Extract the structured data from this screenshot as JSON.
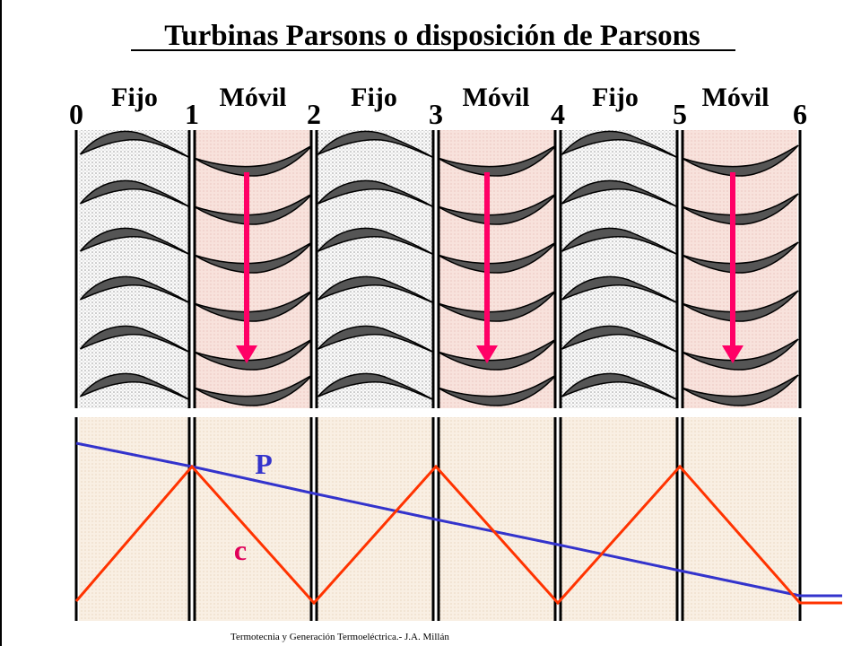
{
  "title": "Turbinas Parsons o disposición de Parsons",
  "stages": [
    {
      "label": "Fijo",
      "kind": "fixed"
    },
    {
      "label": "Móvil",
      "kind": "moving"
    },
    {
      "label": "Fijo",
      "kind": "fixed"
    },
    {
      "label": "Móvil",
      "kind": "moving"
    },
    {
      "label": "Fijo",
      "kind": "fixed"
    },
    {
      "label": "Móvil",
      "kind": "moving"
    }
  ],
  "boundary_numbers": [
    "0",
    "1",
    "2",
    "3",
    "4",
    "5",
    "6"
  ],
  "curves": {
    "pressure": {
      "label": "P",
      "color": "#3333cc"
    },
    "velocity": {
      "label": "c",
      "color": "#ff3300",
      "label_color": "#e0005a"
    }
  },
  "colors": {
    "fixed_fill": "#f4f4f4",
    "moving_fill": "#f6dcd6",
    "lower_fill": "#f7eadc",
    "blade": "#555555",
    "arrow": "#ff0066"
  },
  "icons": {
    "stage_arrow": "down-arrow-icon",
    "blade": "blade-profile-icon"
  },
  "footer": "Termotecnia y Generación Termoeléctrica.- J.A. Millán"
}
